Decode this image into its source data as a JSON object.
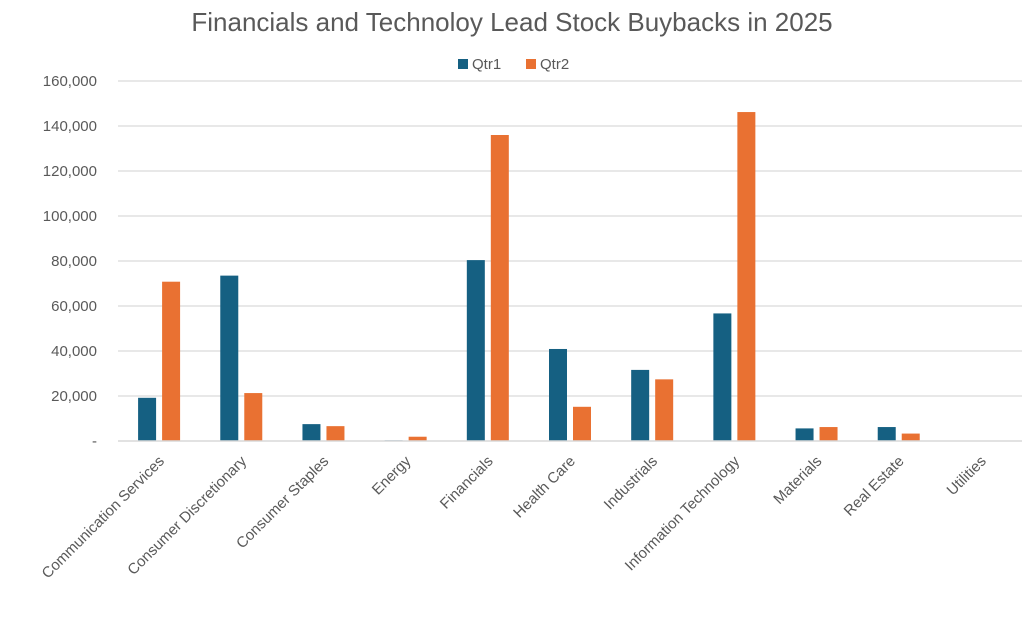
{
  "chart_data": {
    "type": "bar",
    "title": "Financials and Technoloy Lead Stock Buybacks in 2025",
    "xlabel": "",
    "ylabel": "",
    "ylim": [
      0,
      160000
    ],
    "yticks": [
      0,
      20000,
      40000,
      60000,
      80000,
      100000,
      120000,
      140000,
      160000
    ],
    "ytick_labels": [
      "-",
      "20,000",
      "40,000",
      "60,000",
      "80,000",
      "100,000",
      "120,000",
      "140,000",
      "160,000"
    ],
    "grid": true,
    "legend_position": "top",
    "categories": [
      "Communication Services",
      "Consumer Discretionary",
      "Consumer Staples",
      "Energy",
      "Financials",
      "Health Care",
      "Industrials",
      "Information Technology",
      "Materials",
      "Real Estate",
      "Utilities"
    ],
    "series": [
      {
        "name": "Qtr1",
        "color": "#156082",
        "values": [
          19200,
          73500,
          7500,
          300,
          80400,
          40900,
          31600,
          56700,
          5600,
          6200,
          0
        ]
      },
      {
        "name": "Qtr2",
        "color": "#E97132",
        "values": [
          70800,
          21300,
          6600,
          1900,
          136000,
          15200,
          27400,
          146200,
          6200,
          3300,
          0
        ]
      }
    ]
  }
}
